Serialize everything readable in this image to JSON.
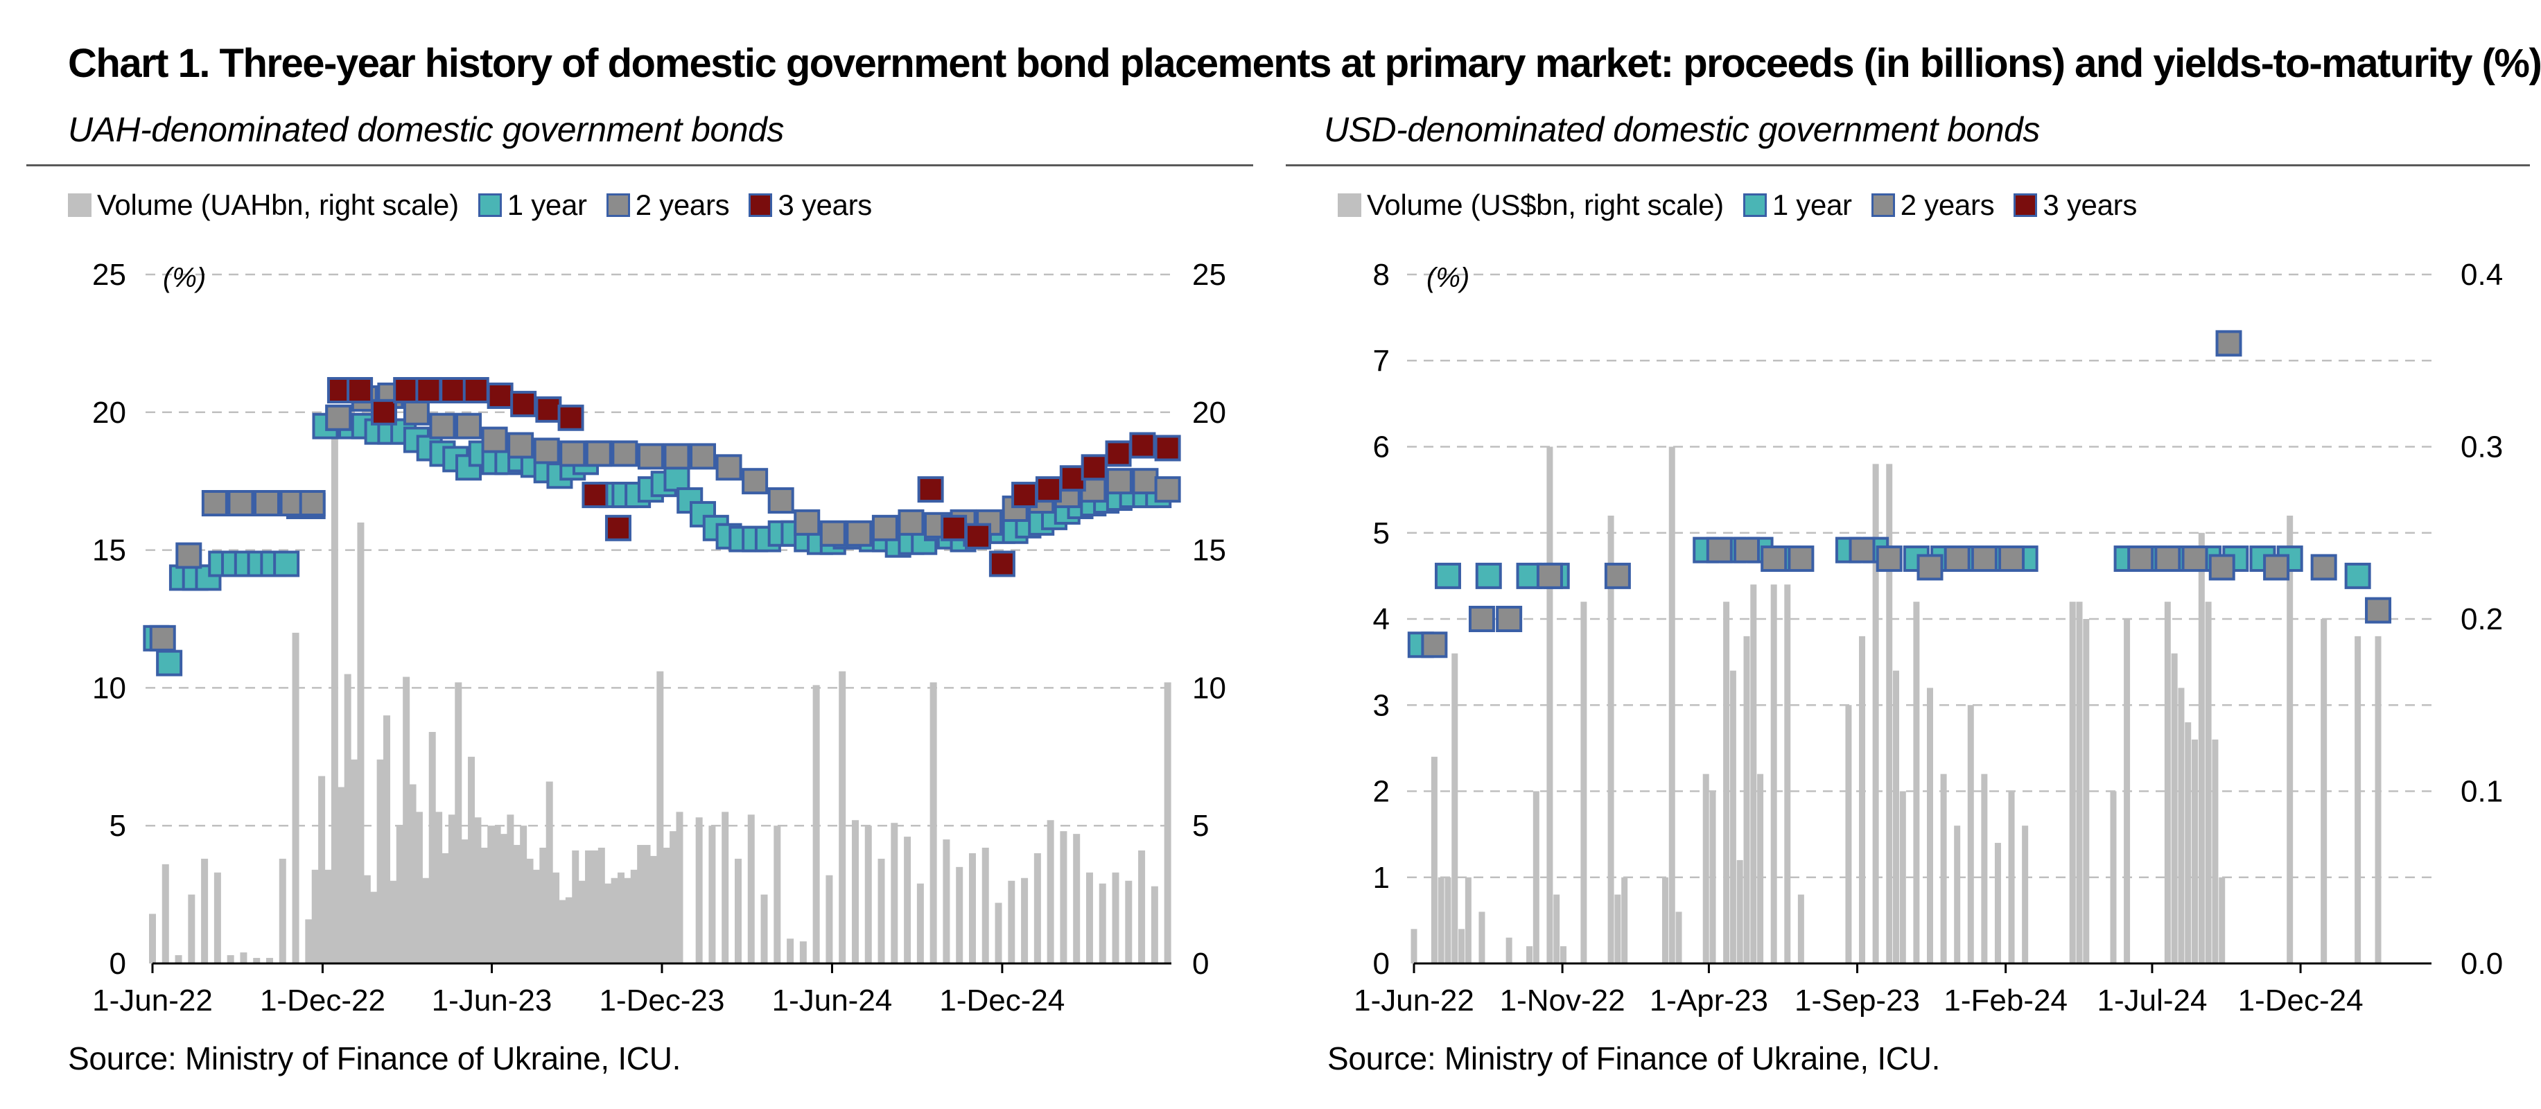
{
  "title": "Chart 1. Three-year history of domestic government bond placements at primary market: proceeds (in billions) and yields-to-maturity (%)",
  "colors": {
    "volume": "#c0c0c0",
    "year1": "#4ab5b5",
    "year2": "#8c8c8c",
    "year3": "#7a0d0d",
    "marker_border": "#3a5fa6",
    "grid": "#bfbfbf"
  },
  "panels": {
    "uah": {
      "subtitle": "UAH-denominated domestic government bonds",
      "legend": [
        "Volume (UAHbn, right scale)",
        "1 year",
        "2 years",
        "3 years"
      ],
      "unit_label": "(%)",
      "source": "Source: Ministry of Finance of Ukraine, ICU."
    },
    "usd": {
      "subtitle": "USD-denominated domestic government bonds",
      "legend": [
        "Volume (US$bn, right scale)",
        "1 year",
        "2 years",
        "3 years"
      ],
      "unit_label": "(%)",
      "source": "Source: Ministry of Finance of Ukraine, ICU."
    }
  },
  "chart_data": [
    {
      "type": "bar+scatter",
      "title": "UAH-denominated domestic government bonds",
      "x_ticks": [
        "1-Jun-22",
        "1-Dec-22",
        "1-Jun-23",
        "1-Dec-23",
        "1-Jun-24",
        "1-Dec-24"
      ],
      "y_left": {
        "label": "(%)",
        "lim": [
          0,
          25
        ],
        "ticks": [
          0,
          5,
          10,
          15,
          20,
          25
        ]
      },
      "y_right": {
        "lim": [
          0,
          25
        ],
        "ticks": [
          0,
          5,
          10,
          15,
          20,
          25
        ]
      },
      "grid": "dashed horizontal",
      "legend_position": "top-left",
      "volume": {
        "name": "Volume (UAHbn, right scale)",
        "x": [
          "2022-06-01",
          "2022-06-15",
          "2022-06-29",
          "2022-07-13",
          "2022-07-27",
          "2022-08-10",
          "2022-08-24",
          "2022-09-07",
          "2022-09-21",
          "2022-10-05",
          "2022-10-19",
          "2022-11-02",
          "2022-11-16",
          "2022-11-23",
          "2022-11-30",
          "2022-12-07",
          "2022-12-14",
          "2022-12-21",
          "2022-12-28",
          "2023-01-04",
          "2023-01-11",
          "2023-01-18",
          "2023-01-25",
          "2023-02-01",
          "2023-02-08",
          "2023-02-15",
          "2023-02-22",
          "2023-03-01",
          "2023-03-08",
          "2023-03-15",
          "2023-03-22",
          "2023-03-29",
          "2023-04-05",
          "2023-04-12",
          "2023-04-19",
          "2023-04-26",
          "2023-05-03",
          "2023-05-10",
          "2023-05-17",
          "2023-05-24",
          "2023-05-31",
          "2023-06-07",
          "2023-06-14",
          "2023-06-21",
          "2023-06-28",
          "2023-07-05",
          "2023-07-12",
          "2023-07-19",
          "2023-07-26",
          "2023-08-02",
          "2023-08-09",
          "2023-08-16",
          "2023-08-23",
          "2023-08-30",
          "2023-09-06",
          "2023-09-13",
          "2023-09-20",
          "2023-09-27",
          "2023-10-04",
          "2023-10-11",
          "2023-10-18",
          "2023-10-25",
          "2023-11-01",
          "2023-11-08",
          "2023-11-15",
          "2023-11-22",
          "2023-11-29",
          "2023-12-06",
          "2023-12-13",
          "2023-12-20",
          "2024-01-10",
          "2024-01-24",
          "2024-02-07",
          "2024-02-21",
          "2024-03-06",
          "2024-03-20",
          "2024-04-03",
          "2024-04-17",
          "2024-05-01",
          "2024-05-15",
          "2024-05-29",
          "2024-06-12",
          "2024-06-26",
          "2024-07-10",
          "2024-07-24",
          "2024-08-07",
          "2024-08-21",
          "2024-09-04",
          "2024-09-18",
          "2024-10-02",
          "2024-10-16",
          "2024-10-30",
          "2024-11-13",
          "2024-11-27",
          "2024-12-11",
          "2024-12-25",
          "2025-01-08",
          "2025-01-22",
          "2025-02-05",
          "2025-02-19",
          "2025-03-05",
          "2025-03-19",
          "2025-04-02",
          "2025-04-16",
          "2025-04-30",
          "2025-05-14",
          "2025-05-28"
        ],
        "values": [
          1.8,
          3.6,
          0.3,
          2.5,
          3.8,
          3.3,
          0.3,
          0.4,
          0.2,
          0.2,
          3.8,
          12.0,
          1.6,
          3.4,
          6.8,
          3.4,
          20.0,
          6.4,
          10.5,
          7.4,
          16.0,
          3.2,
          2.6,
          7.4,
          9.0,
          3.0,
          5.0,
          10.4,
          6.5,
          5.5,
          3.1,
          8.4,
          5.5,
          4.0,
          5.4,
          10.2,
          4.5,
          7.5,
          5.3,
          4.2,
          5.0,
          5.0,
          4.7,
          5.4,
          4.3,
          5.0,
          3.8,
          3.4,
          4.2,
          6.6,
          3.3,
          2.3,
          2.4,
          4.1,
          3.0,
          4.1,
          4.1,
          4.2,
          2.9,
          3.1,
          3.3,
          3.1,
          3.4,
          4.3,
          4.3,
          3.9,
          10.6,
          4.2,
          4.8,
          5.5,
          5.3,
          5.0,
          5.5,
          3.8,
          5.4,
          2.5,
          5.0,
          0.9,
          0.8,
          10.1,
          3.2,
          10.6,
          5.2,
          5.0,
          3.8,
          5.1,
          4.6,
          2.9,
          10.2,
          4.5,
          3.5,
          4.0,
          4.2,
          2.2,
          3.0,
          3.1,
          4.0,
          5.2,
          4.8,
          4.7,
          3.3,
          2.9,
          3.3,
          3.0,
          4.1,
          2.8,
          10.2
        ]
      },
      "series": [
        {
          "name": "1 year",
          "x": [
            "2022-06-05",
            "2022-06-19",
            "2022-07-03",
            "2022-07-17",
            "2022-07-31",
            "2022-08-14",
            "2022-08-28",
            "2022-09-11",
            "2022-09-25",
            "2022-10-09",
            "2022-10-23",
            "2022-11-06",
            "2022-11-20",
            "2022-12-04",
            "2022-12-18",
            "2023-01-01",
            "2023-01-15",
            "2023-01-29",
            "2023-02-12",
            "2023-02-26",
            "2023-03-12",
            "2023-03-26",
            "2023-04-09",
            "2023-04-23",
            "2023-05-07",
            "2023-05-21",
            "2023-06-04",
            "2023-06-18",
            "2023-07-02",
            "2023-07-16",
            "2023-07-30",
            "2023-08-13",
            "2023-08-27",
            "2023-09-10",
            "2023-09-24",
            "2023-10-08",
            "2023-10-22",
            "2023-11-05",
            "2023-11-19",
            "2023-12-03",
            "2023-12-17",
            "2023-12-31",
            "2024-01-14",
            "2024-01-28",
            "2024-02-11",
            "2024-02-25",
            "2024-03-10",
            "2024-03-24",
            "2024-04-07",
            "2024-04-21",
            "2024-05-05",
            "2024-05-19",
            "2024-06-02",
            "2024-06-16",
            "2024-06-30",
            "2024-07-14",
            "2024-07-28",
            "2024-08-11",
            "2024-08-25",
            "2024-09-08",
            "2024-09-22",
            "2024-10-06",
            "2024-10-20",
            "2024-11-03",
            "2024-11-17",
            "2024-12-01",
            "2024-12-15",
            "2024-12-29",
            "2025-01-12",
            "2025-01-26",
            "2025-02-09",
            "2025-02-23",
            "2025-03-09",
            "2025-03-23",
            "2025-04-06",
            "2025-04-20",
            "2025-05-04",
            "2025-05-18"
          ],
          "values": [
            11.8,
            10.9,
            14.0,
            14.0,
            14.0,
            14.5,
            14.5,
            14.5,
            14.5,
            14.5,
            14.5,
            16.6,
            16.6,
            19.5,
            19.8,
            19.5,
            19.5,
            19.3,
            19.3,
            19.3,
            19.0,
            18.7,
            18.5,
            18.3,
            18.0,
            18.5,
            18.2,
            18.2,
            18.3,
            18.1,
            17.9,
            17.7,
            18.0,
            18.2,
            18.5,
            17.0,
            17.0,
            17.0,
            17.2,
            17.4,
            17.6,
            16.8,
            16.3,
            15.8,
            15.5,
            15.4,
            15.4,
            15.4,
            15.6,
            15.6,
            15.4,
            15.3,
            15.3,
            15.5,
            15.5,
            15.4,
            15.4,
            15.2,
            15.3,
            15.3,
            15.8,
            15.5,
            15.4,
            15.6,
            15.7,
            15.7,
            15.7,
            15.9,
            16.0,
            16.2,
            16.4,
            16.6,
            16.7,
            16.8,
            16.9,
            17.0,
            17.0,
            17.0
          ]
        },
        {
          "name": "2 years",
          "x": [
            "2022-06-12",
            "2022-07-10",
            "2022-08-07",
            "2022-09-04",
            "2022-10-02",
            "2022-10-30",
            "2022-11-20",
            "2022-12-18",
            "2023-01-15",
            "2023-02-12",
            "2023-03-12",
            "2023-04-09",
            "2023-05-07",
            "2023-06-04",
            "2023-07-02",
            "2023-07-30",
            "2023-08-27",
            "2023-09-24",
            "2023-10-22",
            "2023-11-19",
            "2023-12-17",
            "2024-01-14",
            "2024-02-11",
            "2024-03-10",
            "2024-04-07",
            "2024-05-05",
            "2024-06-02",
            "2024-06-30",
            "2024-07-28",
            "2024-08-25",
            "2024-09-22",
            "2024-10-20",
            "2024-11-17",
            "2024-12-15",
            "2025-01-12",
            "2025-02-09",
            "2025-03-09",
            "2025-04-06",
            "2025-05-04",
            "2025-05-28"
          ],
          "values": [
            11.8,
            14.8,
            16.7,
            16.7,
            16.7,
            16.7,
            16.7,
            19.8,
            20.5,
            20.6,
            20.0,
            19.5,
            19.5,
            19.0,
            18.8,
            18.6,
            18.5,
            18.5,
            18.5,
            18.4,
            18.4,
            18.4,
            18.0,
            17.5,
            16.8,
            16.0,
            15.6,
            15.6,
            15.8,
            16.0,
            15.9,
            16.0,
            16.0,
            16.5,
            16.8,
            17.0,
            17.2,
            17.5,
            17.5,
            17.2
          ]
        },
        {
          "name": "3 years",
          "x": [
            "2022-12-20",
            "2023-01-10",
            "2023-02-05",
            "2023-03-01",
            "2023-03-25",
            "2023-04-20",
            "2023-05-15",
            "2023-06-10",
            "2023-07-05",
            "2023-08-01",
            "2023-08-25",
            "2023-09-20",
            "2023-10-15",
            "2024-09-15",
            "2024-10-10",
            "2024-11-05",
            "2024-12-01",
            "2024-12-25",
            "2025-01-20",
            "2025-02-15",
            "2025-03-10",
            "2025-04-05",
            "2025-05-01",
            "2025-05-28"
          ],
          "values": [
            20.8,
            20.8,
            20.0,
            20.8,
            20.8,
            20.8,
            20.8,
            20.6,
            20.3,
            20.1,
            19.8,
            17.0,
            15.8,
            17.2,
            15.8,
            15.5,
            14.5,
            17.0,
            17.2,
            17.6,
            18.0,
            18.5,
            18.8,
            18.7
          ]
        }
      ]
    },
    {
      "type": "bar+scatter",
      "title": "USD-denominated domestic government bonds",
      "x_ticks": [
        "1-Jun-22",
        "1-Nov-22",
        "1-Apr-23",
        "1-Sep-23",
        "1-Feb-24",
        "1-Jul-24",
        "1-Dec-24"
      ],
      "y_left": {
        "label": "(%)",
        "lim": [
          0,
          8
        ],
        "ticks": [
          0,
          1,
          2,
          3,
          4,
          5,
          6,
          7,
          8
        ]
      },
      "y_right": {
        "lim": [
          0,
          0.4
        ],
        "ticks": [
          0.0,
          0.1,
          0.2,
          0.3,
          0.4
        ]
      },
      "grid": "dashed horizontal",
      "legend_position": "top-left",
      "volume": {
        "name": "Volume (US$bn, right scale)",
        "x": [
          "2022-06-01",
          "2022-06-22",
          "2022-06-29",
          "2022-07-06",
          "2022-07-13",
          "2022-07-20",
          "2022-07-27",
          "2022-08-10",
          "2022-09-07",
          "2022-09-28",
          "2022-10-05",
          "2022-10-19",
          "2022-10-26",
          "2022-11-02",
          "2022-11-23",
          "2022-12-21",
          "2022-12-28",
          "2023-01-04",
          "2023-02-15",
          "2023-02-22",
          "2023-03-01",
          "2023-03-29",
          "2023-04-05",
          "2023-04-19",
          "2023-04-26",
          "2023-05-03",
          "2023-05-10",
          "2023-05-17",
          "2023-05-24",
          "2023-06-07",
          "2023-06-21",
          "2023-07-05",
          "2023-08-23",
          "2023-09-06",
          "2023-09-20",
          "2023-10-04",
          "2023-10-11",
          "2023-10-18",
          "2023-11-01",
          "2023-11-15",
          "2023-11-29",
          "2023-12-13",
          "2023-12-27",
          "2024-01-10",
          "2024-01-24",
          "2024-02-07",
          "2024-02-21",
          "2024-04-10",
          "2024-04-17",
          "2024-04-24",
          "2024-05-22",
          "2024-06-05",
          "2024-07-17",
          "2024-07-24",
          "2024-07-31",
          "2024-08-07",
          "2024-08-14",
          "2024-08-21",
          "2024-08-28",
          "2024-09-04",
          "2024-09-11",
          "2024-11-20",
          "2024-12-25",
          "2025-01-29",
          "2025-02-19"
        ],
        "values": [
          0.02,
          0.12,
          0.05,
          0.05,
          0.18,
          0.02,
          0.05,
          0.03,
          0.015,
          0.01,
          0.1,
          0.3,
          0.04,
          0.01,
          0.21,
          0.26,
          0.04,
          0.05,
          0.05,
          0.3,
          0.03,
          0.11,
          0.1,
          0.21,
          0.17,
          0.06,
          0.19,
          0.22,
          0.11,
          0.22,
          0.22,
          0.04,
          0.15,
          0.19,
          0.29,
          0.29,
          0.17,
          0.1,
          0.21,
          0.16,
          0.11,
          0.08,
          0.15,
          0.11,
          0.07,
          0.1,
          0.08,
          0.21,
          0.21,
          0.2,
          0.1,
          0.2,
          0.21,
          0.18,
          0.16,
          0.14,
          0.13,
          0.25,
          0.21,
          0.13,
          0.05,
          0.26,
          0.2,
          0.19,
          0.19
        ]
      },
      "series": [
        {
          "name": "1 year",
          "x": [
            "2022-06-08",
            "2022-07-06",
            "2022-08-17",
            "2022-09-28",
            "2022-10-26",
            "2023-03-29",
            "2023-04-26",
            "2023-05-24",
            "2023-06-21",
            "2023-08-23",
            "2023-09-20",
            "2023-11-01",
            "2023-11-29",
            "2023-12-27",
            "2024-01-24",
            "2024-02-21",
            "2024-06-05",
            "2024-07-03",
            "2024-07-31",
            "2024-08-28",
            "2024-09-25",
            "2024-10-23",
            "2024-11-20",
            "2025-01-29"
          ],
          "values": [
            3.7,
            4.5,
            4.5,
            4.5,
            4.5,
            4.8,
            4.8,
            4.8,
            4.7,
            4.8,
            4.8,
            4.7,
            4.7,
            4.7,
            4.7,
            4.7,
            4.7,
            4.7,
            4.7,
            4.7,
            4.7,
            4.7,
            4.7,
            4.5
          ]
        },
        {
          "name": "2 years",
          "x": [
            "2022-06-22",
            "2022-08-10",
            "2022-09-07",
            "2022-10-19",
            "2022-12-28",
            "2023-04-12",
            "2023-05-10",
            "2023-06-07",
            "2023-07-05",
            "2023-09-06",
            "2023-10-04",
            "2023-11-15",
            "2023-12-13",
            "2024-01-10",
            "2024-02-07",
            "2024-06-19",
            "2024-07-17",
            "2024-08-14",
            "2024-09-11",
            "2024-09-18",
            "2024-11-06",
            "2024-12-25",
            "2025-02-19"
          ],
          "values": [
            3.7,
            4.0,
            4.0,
            4.5,
            4.5,
            4.8,
            4.8,
            4.7,
            4.7,
            4.8,
            4.7,
            4.6,
            4.7,
            4.7,
            4.7,
            4.7,
            4.7,
            4.7,
            4.6,
            7.2,
            4.6,
            4.6,
            4.1
          ]
        },
        {
          "name": "3 years",
          "x": [],
          "values": []
        }
      ]
    }
  ]
}
